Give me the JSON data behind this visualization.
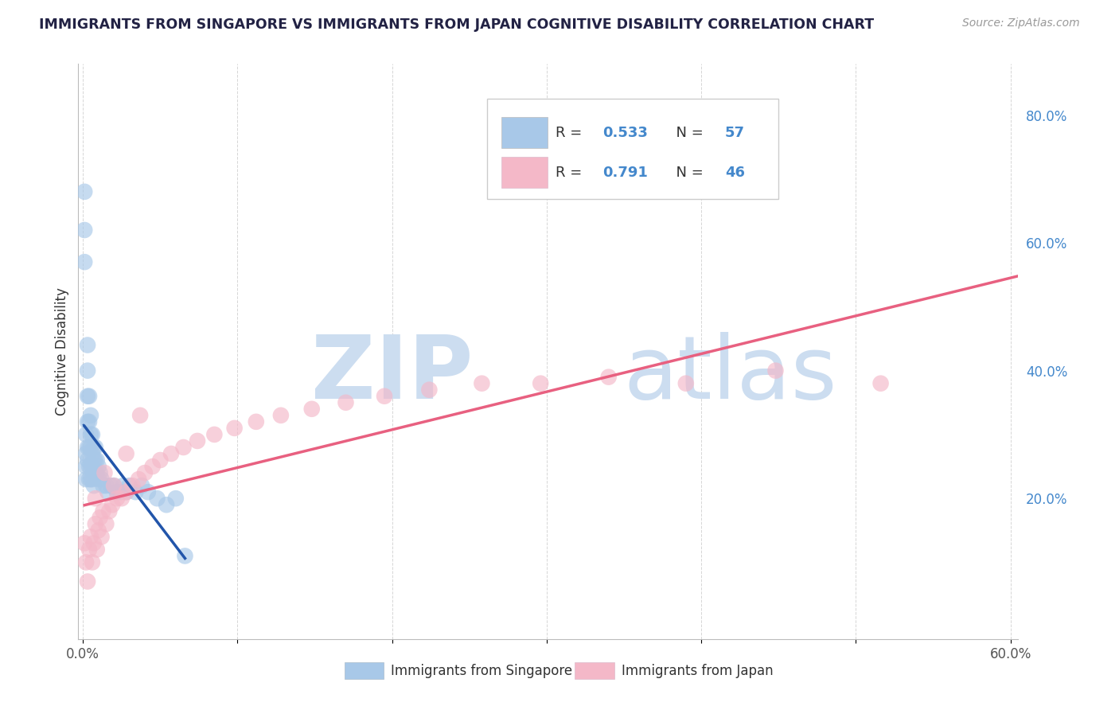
{
  "title": "IMMIGRANTS FROM SINGAPORE VS IMMIGRANTS FROM JAPAN COGNITIVE DISABILITY CORRELATION CHART",
  "source_text": "Source: ZipAtlas.com",
  "ylabel": "Cognitive Disability",
  "xlim": [
    0.0,
    0.6
  ],
  "ylim": [
    0.0,
    0.88
  ],
  "xtick_vals": [
    0.0,
    0.1,
    0.2,
    0.3,
    0.4,
    0.5,
    0.6
  ],
  "xtick_labels": [
    "0.0%",
    "",
    "",
    "",
    "",
    "",
    "60.0%"
  ],
  "ytick_vals_right": [
    0.2,
    0.4,
    0.6,
    0.8
  ],
  "ytick_labels_right": [
    "20.0%",
    "40.0%",
    "60.0%",
    "80.0%"
  ],
  "R_singapore": 0.533,
  "N_singapore": 57,
  "R_japan": 0.791,
  "N_japan": 46,
  "color_singapore": "#a8c8e8",
  "color_japan": "#f4b8c8",
  "line_color_singapore": "#2255aa",
  "line_color_japan": "#e86080",
  "background_color": "#ffffff",
  "grid_color": "#cccccc",
  "watermark_zip_color": "#ccddf0",
  "watermark_atlas_color": "#ccddf0",
  "sg_x": [
    0.001,
    0.001,
    0.001,
    0.002,
    0.002,
    0.002,
    0.002,
    0.003,
    0.003,
    0.003,
    0.003,
    0.003,
    0.003,
    0.004,
    0.004,
    0.004,
    0.004,
    0.004,
    0.005,
    0.005,
    0.005,
    0.005,
    0.005,
    0.006,
    0.006,
    0.006,
    0.006,
    0.007,
    0.007,
    0.007,
    0.007,
    0.008,
    0.008,
    0.008,
    0.009,
    0.009,
    0.01,
    0.01,
    0.011,
    0.012,
    0.013,
    0.015,
    0.016,
    0.018,
    0.02,
    0.022,
    0.024,
    0.026,
    0.028,
    0.03,
    0.034,
    0.038,
    0.042,
    0.048,
    0.054,
    0.06,
    0.066
  ],
  "sg_y": [
    0.68,
    0.62,
    0.57,
    0.3,
    0.27,
    0.25,
    0.23,
    0.44,
    0.4,
    0.36,
    0.32,
    0.28,
    0.26,
    0.36,
    0.32,
    0.28,
    0.25,
    0.23,
    0.33,
    0.3,
    0.28,
    0.25,
    0.23,
    0.3,
    0.27,
    0.25,
    0.23,
    0.28,
    0.26,
    0.24,
    0.22,
    0.28,
    0.26,
    0.24,
    0.26,
    0.24,
    0.25,
    0.23,
    0.24,
    0.23,
    0.22,
    0.22,
    0.21,
    0.22,
    0.22,
    0.21,
    0.21,
    0.22,
    0.21,
    0.22,
    0.21,
    0.22,
    0.21,
    0.2,
    0.19,
    0.2,
    0.11
  ],
  "jp_x": [
    0.001,
    0.002,
    0.003,
    0.004,
    0.005,
    0.006,
    0.007,
    0.008,
    0.009,
    0.01,
    0.011,
    0.012,
    0.013,
    0.015,
    0.017,
    0.019,
    0.022,
    0.025,
    0.028,
    0.032,
    0.036,
    0.04,
    0.045,
    0.05,
    0.057,
    0.065,
    0.074,
    0.085,
    0.098,
    0.112,
    0.128,
    0.148,
    0.17,
    0.195,
    0.224,
    0.258,
    0.296,
    0.34,
    0.39,
    0.448,
    0.516,
    0.008,
    0.014,
    0.02,
    0.028,
    0.037
  ],
  "jp_y": [
    0.13,
    0.1,
    0.07,
    0.12,
    0.14,
    0.1,
    0.13,
    0.16,
    0.12,
    0.15,
    0.17,
    0.14,
    0.18,
    0.16,
    0.18,
    0.19,
    0.2,
    0.2,
    0.21,
    0.22,
    0.23,
    0.24,
    0.25,
    0.26,
    0.27,
    0.28,
    0.29,
    0.3,
    0.31,
    0.32,
    0.33,
    0.34,
    0.35,
    0.36,
    0.37,
    0.38,
    0.38,
    0.39,
    0.38,
    0.4,
    0.38,
    0.2,
    0.24,
    0.22,
    0.27,
    0.33
  ]
}
